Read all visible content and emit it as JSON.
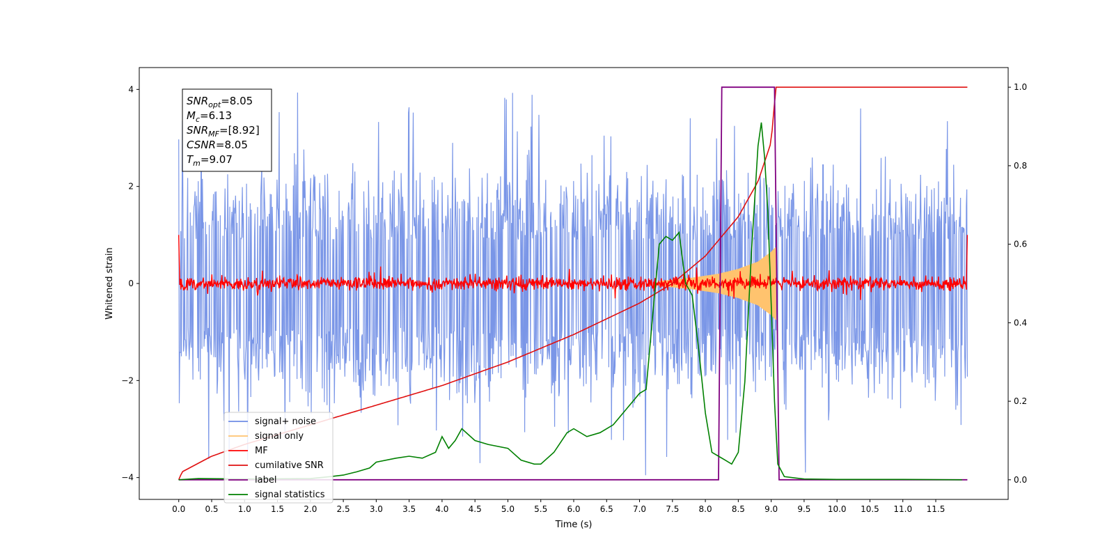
{
  "chart_data": {
    "type": "line",
    "xlabel": "Time (s)",
    "ylabel": "Whitened strain",
    "xlim": [
      -0.6,
      12.6
    ],
    "ylim": [
      -4.45,
      4.45
    ],
    "y2lim": [
      -0.05,
      1.05
    ],
    "xticks": [
      "0.0",
      "0.5",
      "1.0",
      "1.5",
      "2.0",
      "2.5",
      "3.0",
      "3.5",
      "4.0",
      "4.5",
      "5.0",
      "5.5",
      "6.0",
      "6.5",
      "7.0",
      "7.5",
      "8.0",
      "8.5",
      "9.0",
      "9.5",
      "10.0",
      "10.5",
      "11.0",
      "11.5"
    ],
    "yticks": [
      "−4",
      "−2",
      "0",
      "2",
      "4"
    ],
    "y2ticks": [
      "0.0",
      "0.2",
      "0.4",
      "0.6",
      "0.8",
      "1.0"
    ],
    "grid": false,
    "legend_position": "lower-left",
    "colors": {
      "noise": "#6f8de5",
      "signal": "#ffc36e",
      "mf": "#ff0000",
      "csnr": "#e01010",
      "label": "#800080",
      "stats": "#008000"
    },
    "annotation": {
      "lines": [
        {
          "base": "SNR",
          "sub": "opt",
          "value": "=8.05"
        },
        {
          "base": "M",
          "sub": "c",
          "value": "=6.13"
        },
        {
          "base": "SNR",
          "sub": "MF",
          "value": "=[8.92]"
        },
        {
          "base": "CSNR",
          "sub": "",
          "value": "=8.05"
        },
        {
          "base": "T",
          "sub": "m",
          "value": "=9.07"
        }
      ]
    },
    "legend": [
      {
        "label": "signal+ noise",
        "color": "#6f8de5"
      },
      {
        "label": "signal only",
        "color": "#ffc36e"
      },
      {
        "label": "MF",
        "color": "#ff0000"
      },
      {
        "label": "cumilative SNR",
        "color": "#e01010"
      },
      {
        "label": "label",
        "color": "#800080"
      },
      {
        "label": "signal statistics",
        "color": "#008000"
      }
    ],
    "series": [
      {
        "name": "signal+ noise",
        "axis": "left",
        "noise_band": [
          -2.0,
          2.0
        ],
        "x_range": [
          0.0,
          11.98
        ]
      },
      {
        "name": "signal only",
        "axis": "left",
        "x": [
          7.3,
          7.8,
          8.2,
          8.5,
          8.8,
          9.0,
          9.07
        ],
        "amplitude": [
          0.05,
          0.12,
          0.2,
          0.3,
          0.45,
          0.65,
          0.75
        ]
      },
      {
        "name": "MF",
        "axis": "left",
        "band": [
          -0.15,
          0.15
        ],
        "x_range": [
          0.0,
          11.98
        ]
      },
      {
        "name": "cumilative SNR",
        "axis": "right",
        "x": [
          0.0,
          0.05,
          0.5,
          1.0,
          2.0,
          3.0,
          4.0,
          5.0,
          6.0,
          7.0,
          7.5,
          8.0,
          8.5,
          8.8,
          9.0,
          9.07,
          11.98
        ],
        "y": [
          0.0,
          0.02,
          0.06,
          0.09,
          0.14,
          0.19,
          0.24,
          0.3,
          0.37,
          0.45,
          0.5,
          0.57,
          0.67,
          0.76,
          0.86,
          1.0,
          1.0
        ]
      },
      {
        "name": "label",
        "axis": "right",
        "x": [
          0.0,
          8.2,
          8.25,
          9.05,
          9.12,
          11.98
        ],
        "y": [
          0.0,
          0.0,
          1.0,
          1.0,
          0.0,
          0.0
        ]
      },
      {
        "name": "signal statistics",
        "axis": "right",
        "x": [
          0.0,
          0.3,
          1.0,
          2.0,
          2.3,
          2.5,
          2.7,
          2.9,
          3.0,
          3.3,
          3.5,
          3.7,
          3.9,
          4.0,
          4.1,
          4.2,
          4.3,
          4.5,
          4.7,
          5.0,
          5.2,
          5.4,
          5.5,
          5.7,
          5.9,
          6.0,
          6.2,
          6.4,
          6.6,
          6.8,
          7.0,
          7.1,
          7.2,
          7.3,
          7.4,
          7.5,
          7.6,
          7.7,
          7.8,
          7.9,
          8.0,
          8.1,
          8.2,
          8.3,
          8.4,
          8.5,
          8.6,
          8.7,
          8.8,
          8.85,
          8.9,
          8.95,
          9.0,
          9.05,
          9.1,
          9.2,
          9.5,
          10.0,
          11.0,
          11.9
        ],
        "y": [
          0.0,
          0.003,
          0.002,
          0.003,
          0.008,
          0.012,
          0.02,
          0.03,
          0.045,
          0.055,
          0.06,
          0.055,
          0.07,
          0.11,
          0.08,
          0.1,
          0.13,
          0.1,
          0.09,
          0.08,
          0.05,
          0.04,
          0.04,
          0.07,
          0.12,
          0.13,
          0.11,
          0.12,
          0.14,
          0.18,
          0.22,
          0.23,
          0.42,
          0.6,
          0.62,
          0.61,
          0.63,
          0.5,
          0.47,
          0.33,
          0.17,
          0.07,
          0.06,
          0.05,
          0.04,
          0.07,
          0.25,
          0.58,
          0.85,
          0.91,
          0.82,
          0.68,
          0.45,
          0.2,
          0.04,
          0.008,
          0.002,
          0.001,
          0.001,
          0.0
        ]
      }
    ]
  }
}
